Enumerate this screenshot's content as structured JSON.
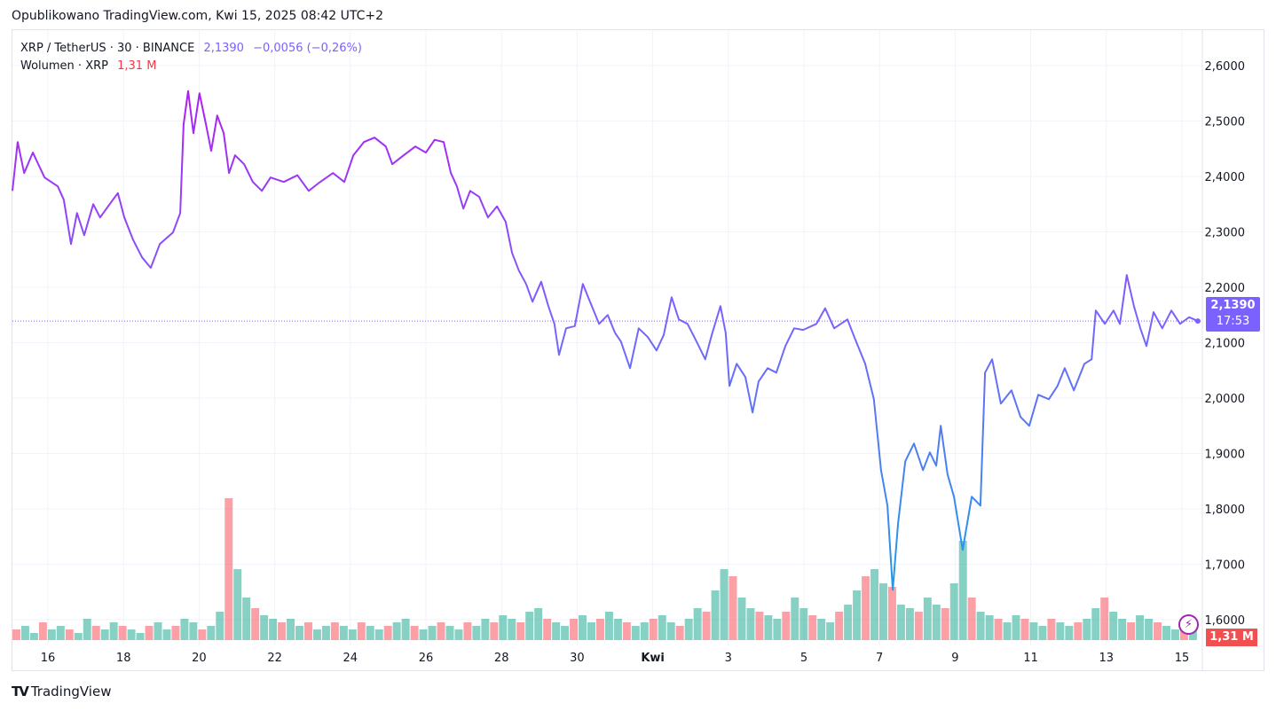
{
  "published": "Opublikowano TradingView.com, Kwi 15, 2025 08:42 UTC+2",
  "legend": {
    "symbol": "XRP / TetherUS · 30 · BINANCE",
    "price": "2,1390",
    "change": "−0,0056 (−0,26%)",
    "volume_label": "Wolumen · XRP",
    "volume_value": "1,31 M"
  },
  "price_tag": {
    "price": "2,1390",
    "countdown": "17:53"
  },
  "volume_tag": "1,31 M",
  "logo": "TradingView",
  "colors": {
    "top": "#b01cf0",
    "mid": "#7b61ff",
    "bottom": "#1e9be8",
    "vol_up": "#22ab94",
    "vol_down": "#f7525f",
    "accent": "#7b61ff"
  },
  "chart_data": {
    "type": "line",
    "title": "XRP / TetherUS · 30 · BINANCE",
    "x_unit": "days since Mar 16, 2025",
    "xlim": [
      -0.95,
      31.3
    ],
    "ylim": [
      1.56,
      2.66
    ],
    "y_ticks": [
      "2,6000",
      "2,5000",
      "2,4000",
      "2,3000",
      "2,2000",
      "2,1000",
      "2,0000",
      "1,9000",
      "1,8000",
      "1,7000",
      "1,6000"
    ],
    "y_tick_values": [
      2.6,
      2.5,
      2.4,
      2.3,
      2.2,
      2.1,
      2.0,
      1.9,
      1.8,
      1.7,
      1.6
    ],
    "x_ticks": [
      {
        "d": 0,
        "label": "16"
      },
      {
        "d": 2,
        "label": "18"
      },
      {
        "d": 4,
        "label": "20"
      },
      {
        "d": 6,
        "label": "22"
      },
      {
        "d": 8,
        "label": "24"
      },
      {
        "d": 10,
        "label": "26"
      },
      {
        "d": 12,
        "label": "28"
      },
      {
        "d": 14,
        "label": "30"
      },
      {
        "d": 16,
        "label": "Kwi"
      },
      {
        "d": 18,
        "label": "3"
      },
      {
        "d": 20,
        "label": "5"
      },
      {
        "d": 22,
        "label": "7"
      },
      {
        "d": 24,
        "label": "9"
      },
      {
        "d": 26,
        "label": "11"
      },
      {
        "d": 28,
        "label": "13"
      },
      {
        "d": 30,
        "label": "15"
      }
    ],
    "last_price": 2.139,
    "series": [
      {
        "name": "XRPUSDT",
        "points": [
          [
            -0.94,
            2.374
          ],
          [
            -0.8,
            2.462
          ],
          [
            -0.63,
            2.406
          ],
          [
            -0.4,
            2.443
          ],
          [
            -0.09,
            2.398
          ],
          [
            0.26,
            2.382
          ],
          [
            0.42,
            2.358
          ],
          [
            0.61,
            2.278
          ],
          [
            0.77,
            2.334
          ],
          [
            0.96,
            2.294
          ],
          [
            1.2,
            2.35
          ],
          [
            1.38,
            2.326
          ],
          [
            1.55,
            2.342
          ],
          [
            1.85,
            2.37
          ],
          [
            2.02,
            2.326
          ],
          [
            2.25,
            2.286
          ],
          [
            2.49,
            2.254
          ],
          [
            2.72,
            2.235
          ],
          [
            2.96,
            2.278
          ],
          [
            3.31,
            2.299
          ],
          [
            3.5,
            2.334
          ],
          [
            3.59,
            2.494
          ],
          [
            3.71,
            2.554
          ],
          [
            3.85,
            2.478
          ],
          [
            4.01,
            2.55
          ],
          [
            4.18,
            2.494
          ],
          [
            4.32,
            2.446
          ],
          [
            4.48,
            2.51
          ],
          [
            4.65,
            2.478
          ],
          [
            4.79,
            2.406
          ],
          [
            4.95,
            2.438
          ],
          [
            5.19,
            2.422
          ],
          [
            5.42,
            2.39
          ],
          [
            5.66,
            2.374
          ],
          [
            5.89,
            2.398
          ],
          [
            6.24,
            2.39
          ],
          [
            6.6,
            2.402
          ],
          [
            6.9,
            2.374
          ],
          [
            7.18,
            2.389
          ],
          [
            7.54,
            2.406
          ],
          [
            7.84,
            2.39
          ],
          [
            8.08,
            2.438
          ],
          [
            8.36,
            2.462
          ],
          [
            8.64,
            2.47
          ],
          [
            8.94,
            2.454
          ],
          [
            9.11,
            2.422
          ],
          [
            9.41,
            2.438
          ],
          [
            9.72,
            2.454
          ],
          [
            10.0,
            2.443
          ],
          [
            10.23,
            2.466
          ],
          [
            10.47,
            2.462
          ],
          [
            10.66,
            2.406
          ],
          [
            10.82,
            2.382
          ],
          [
            10.99,
            2.342
          ],
          [
            11.17,
            2.374
          ],
          [
            11.41,
            2.363
          ],
          [
            11.64,
            2.326
          ],
          [
            11.88,
            2.346
          ],
          [
            12.11,
            2.318
          ],
          [
            12.28,
            2.262
          ],
          [
            12.46,
            2.23
          ],
          [
            12.65,
            2.206
          ],
          [
            12.82,
            2.174
          ],
          [
            13.05,
            2.21
          ],
          [
            13.24,
            2.166
          ],
          [
            13.4,
            2.134
          ],
          [
            13.52,
            2.078
          ],
          [
            13.71,
            2.126
          ],
          [
            13.94,
            2.13
          ],
          [
            14.15,
            2.206
          ],
          [
            14.34,
            2.174
          ],
          [
            14.58,
            2.134
          ],
          [
            14.81,
            2.15
          ],
          [
            15.0,
            2.118
          ],
          [
            15.16,
            2.102
          ],
          [
            15.4,
            2.054
          ],
          [
            15.63,
            2.126
          ],
          [
            15.87,
            2.11
          ],
          [
            16.1,
            2.086
          ],
          [
            16.29,
            2.114
          ],
          [
            16.5,
            2.182
          ],
          [
            16.69,
            2.142
          ],
          [
            16.92,
            2.134
          ],
          [
            17.16,
            2.102
          ],
          [
            17.39,
            2.07
          ],
          [
            17.56,
            2.114
          ],
          [
            17.79,
            2.166
          ],
          [
            17.93,
            2.118
          ],
          [
            18.03,
            2.022
          ],
          [
            18.22,
            2.062
          ],
          [
            18.45,
            2.038
          ],
          [
            18.64,
            1.974
          ],
          [
            18.8,
            2.03
          ],
          [
            19.04,
            2.054
          ],
          [
            19.27,
            2.046
          ],
          [
            19.51,
            2.094
          ],
          [
            19.74,
            2.126
          ],
          [
            19.98,
            2.123
          ],
          [
            20.33,
            2.134
          ],
          [
            20.56,
            2.162
          ],
          [
            20.8,
            2.126
          ],
          [
            21.15,
            2.142
          ],
          [
            21.38,
            2.102
          ],
          [
            21.62,
            2.062
          ],
          [
            21.85,
            1.998
          ],
          [
            22.04,
            1.87
          ],
          [
            22.21,
            1.806
          ],
          [
            22.35,
            1.654
          ],
          [
            22.49,
            1.774
          ],
          [
            22.68,
            1.886
          ],
          [
            22.91,
            1.918
          ],
          [
            23.15,
            1.87
          ],
          [
            23.33,
            1.902
          ],
          [
            23.5,
            1.878
          ],
          [
            23.62,
            1.95
          ],
          [
            23.8,
            1.862
          ],
          [
            23.97,
            1.822
          ],
          [
            24.2,
            1.726
          ],
          [
            24.44,
            1.822
          ],
          [
            24.67,
            1.806
          ],
          [
            24.79,
            2.046
          ],
          [
            24.98,
            2.07
          ],
          [
            25.21,
            1.99
          ],
          [
            25.49,
            2.014
          ],
          [
            25.73,
            1.966
          ],
          [
            25.96,
            1.95
          ],
          [
            26.2,
            2.006
          ],
          [
            26.48,
            1.998
          ],
          [
            26.71,
            2.022
          ],
          [
            26.9,
            2.054
          ],
          [
            27.14,
            2.014
          ],
          [
            27.42,
            2.062
          ],
          [
            27.61,
            2.07
          ],
          [
            27.72,
            2.158
          ],
          [
            27.96,
            2.134
          ],
          [
            28.19,
            2.158
          ],
          [
            28.36,
            2.134
          ],
          [
            28.54,
            2.222
          ],
          [
            28.73,
            2.166
          ],
          [
            28.9,
            2.126
          ],
          [
            29.06,
            2.094
          ],
          [
            29.25,
            2.155
          ],
          [
            29.48,
            2.126
          ],
          [
            29.72,
            2.158
          ],
          [
            29.95,
            2.134
          ],
          [
            30.19,
            2.146
          ],
          [
            30.42,
            2.139
          ]
        ]
      }
    ],
    "volume": {
      "unit": "M XRP",
      "last": 1.31,
      "max": 40,
      "values": [
        3,
        4,
        2,
        5,
        3,
        4,
        3,
        2,
        6,
        4,
        3,
        5,
        4,
        3,
        2,
        4,
        5,
        3,
        4,
        6,
        5,
        3,
        4,
        8,
        40,
        20,
        12,
        9,
        7,
        6,
        5,
        6,
        4,
        5,
        3,
        4,
        5,
        4,
        3,
        5,
        4,
        3,
        4,
        5,
        6,
        4,
        3,
        4,
        5,
        4,
        3,
        5,
        4,
        6,
        5,
        7,
        6,
        5,
        8,
        9,
        6,
        5,
        4,
        6,
        7,
        5,
        6,
        8,
        6,
        5,
        4,
        5,
        6,
        7,
        5,
        4,
        6,
        9,
        8,
        14,
        20,
        18,
        12,
        9,
        8,
        7,
        6,
        8,
        12,
        9,
        7,
        6,
        5,
        8,
        10,
        14,
        18,
        20,
        16,
        15,
        10,
        9,
        8,
        12,
        10,
        9,
        16,
        28,
        12,
        8,
        7,
        6,
        5,
        7,
        6,
        5,
        4,
        6,
        5,
        4,
        5,
        6,
        9,
        12,
        8,
        6,
        5,
        7,
        6,
        5,
        4,
        3,
        4,
        3
      ]
    }
  }
}
